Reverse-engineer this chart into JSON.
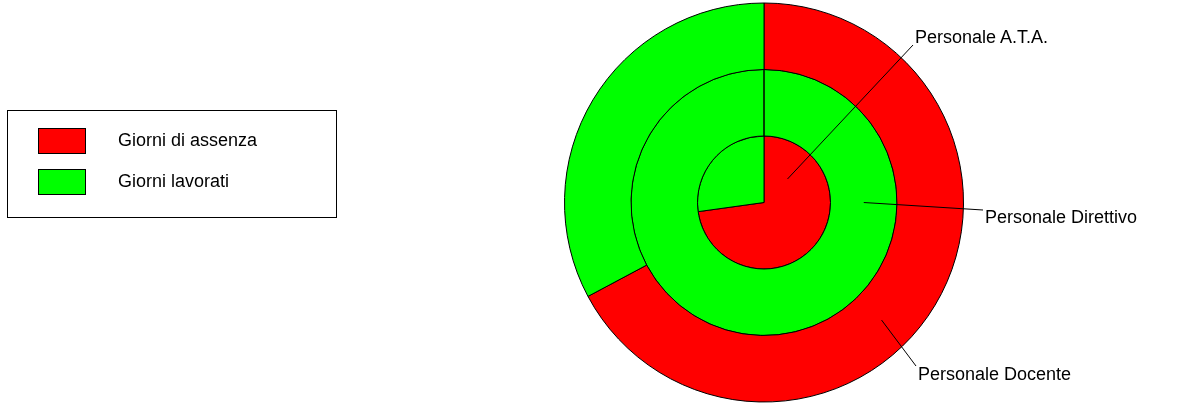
{
  "chart_data": {
    "type": "pie",
    "categories": [
      "Giorni di assenza",
      "Giorni lavorati"
    ],
    "colors": [
      "#ff0000",
      "#00ff00"
    ],
    "legend": "left",
    "series": [
      {
        "name": "Personale A.T.A.",
        "values": [
          72.8,
          27.2
        ]
      },
      {
        "name": "Personale Direttivo",
        "values": [
          0,
          100
        ]
      },
      {
        "name": "Personale Docente",
        "values": [
          67.2,
          32.8
        ]
      }
    ]
  }
}
